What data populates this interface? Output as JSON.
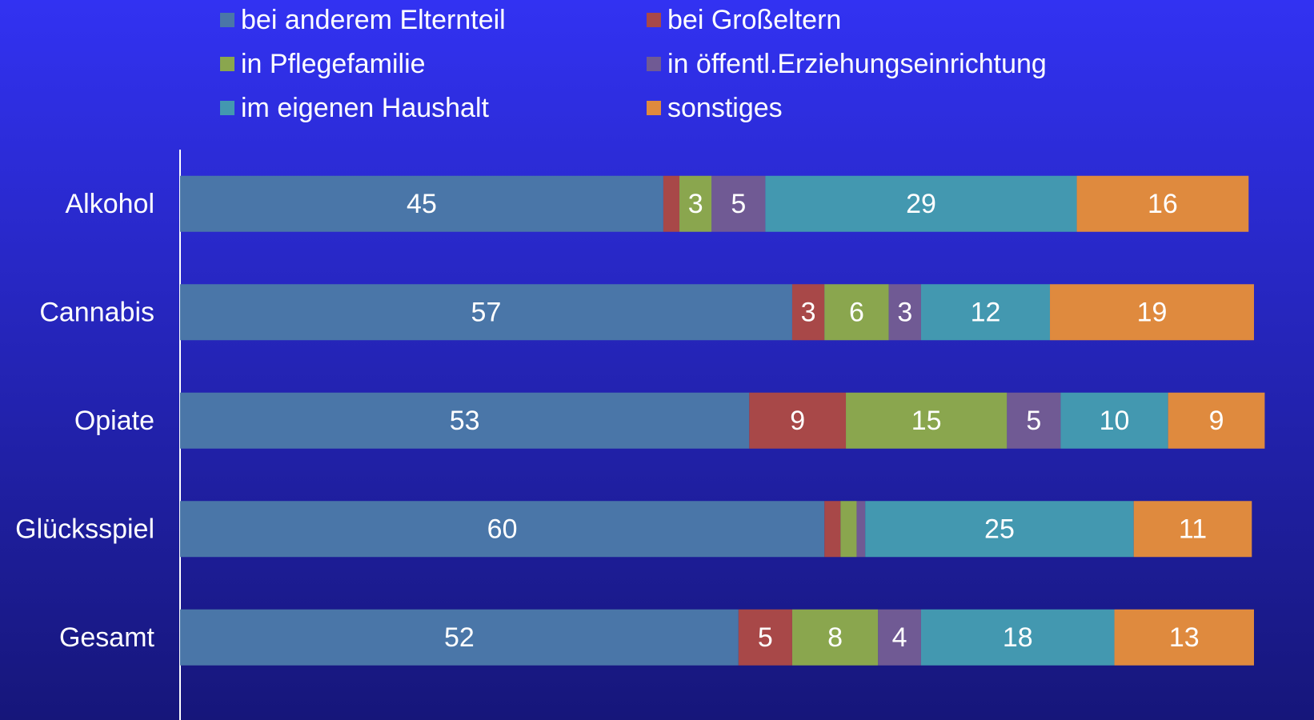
{
  "chart_data": {
    "type": "stacked-bar-horizontal",
    "categories": [
      "Alkohol",
      "Cannabis",
      "Opiate",
      "Glücksspiel",
      "Gesamt"
    ],
    "series": [
      {
        "name": "bei anderem Elternteil",
        "color": "#4a76a8",
        "values": [
          45,
          57,
          53,
          60,
          52
        ]
      },
      {
        "name": "bei Großeltern",
        "color": "#a84848",
        "values": [
          1.5,
          3,
          9,
          1.5,
          5
        ]
      },
      {
        "name": "in Pflegefamilie",
        "color": "#8aa64e",
        "values": [
          3,
          6,
          15,
          1.5,
          8
        ]
      },
      {
        "name": "in öffentl.Erziehungseinrichtung",
        "color": "#705a94",
        "values": [
          5,
          3,
          5,
          0.8,
          4
        ]
      },
      {
        "name": "im eigenen Haushalt",
        "color": "#4398b0",
        "values": [
          29,
          12,
          10,
          25,
          18
        ]
      },
      {
        "name": "sonstiges",
        "color": "#df8a3e",
        "values": [
          16,
          19,
          9,
          11,
          13
        ]
      }
    ],
    "xlim": [
      0,
      100
    ]
  }
}
